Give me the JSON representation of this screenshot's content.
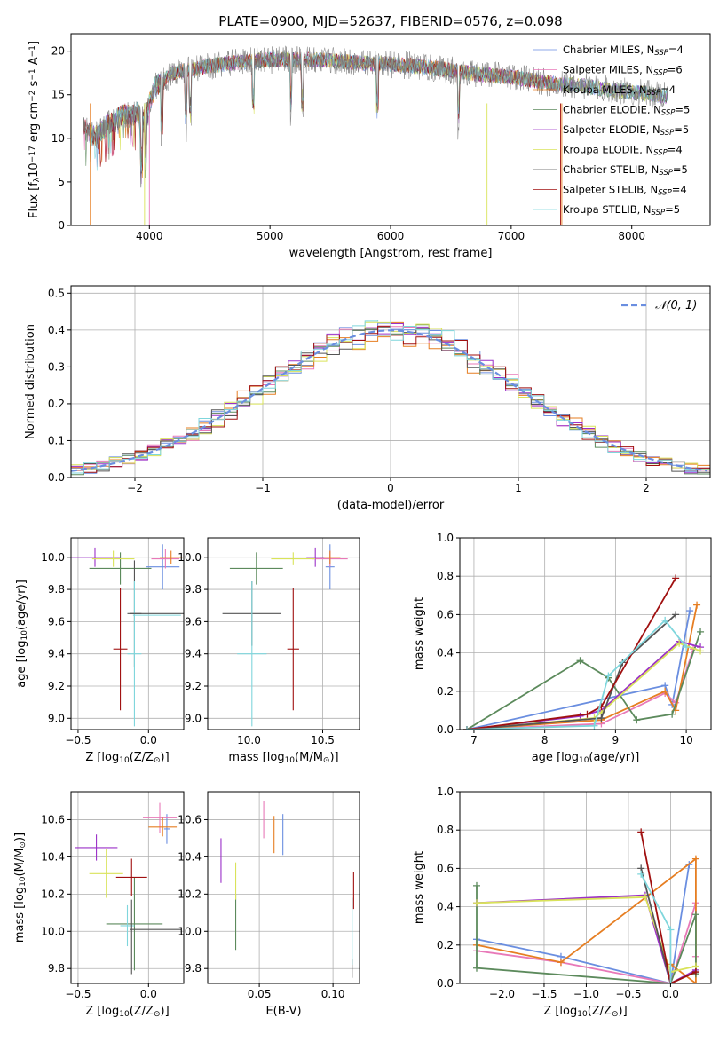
{
  "figure": {
    "title": "PLATE=0900, MJD=52637, FIBERID=0576, z=0.098"
  },
  "models": [
    {
      "name": "Chabrier MILES, N$_{SSP}$=4",
      "label_prefix": "Chabrier MILES, N",
      "label_sub": "SSP",
      "label_suffix": "=4",
      "color": "#6a8ee0"
    },
    {
      "name": "Salpeter MILES, N$_{SSP}$=6",
      "label_prefix": "Salpeter MILES, N",
      "label_sub": "SSP",
      "label_suffix": "=6",
      "color": "#e879b8"
    },
    {
      "name": "Kroupa MILES, N$_{SSP}$=4",
      "label_prefix": "Kroupa MILES, N",
      "label_sub": "SSP",
      "label_suffix": "=4",
      "color": "#e67e22"
    },
    {
      "name": "Chabrier ELODIE, N$_{SSP}$=5",
      "label_prefix": "Chabrier ELODIE, N",
      "label_sub": "SSP",
      "label_suffix": "=5",
      "color": "#5c8a5c"
    },
    {
      "name": "Salpeter ELODIE, N$_{SSP}$=5",
      "label_prefix": "Salpeter ELODIE, N",
      "label_sub": "SSP",
      "label_suffix": "=5",
      "color": "#9b30c8"
    },
    {
      "name": "Kroupa ELODIE, N$_{SSP}$=4",
      "label_prefix": "Kroupa ELODIE, N",
      "label_sub": "SSP",
      "label_suffix": "=4",
      "color": "#d9e35a"
    },
    {
      "name": "Chabrier STELIB, N$_{SSP}$=5",
      "label_prefix": "Chabrier STELIB, N",
      "label_sub": "SSP",
      "label_suffix": "=5",
      "color": "#555555"
    },
    {
      "name": "Salpeter STELIB, N$_{SSP}$=4",
      "label_prefix": "Salpeter STELIB, N",
      "label_sub": "SSP",
      "label_suffix": "=4",
      "color": "#a01010"
    },
    {
      "name": "Kroupa STELIB, N$_{SSP}$=5",
      "label_prefix": "Kroupa STELIB, N",
      "label_sub": "SSP",
      "label_suffix": "=5",
      "color": "#7fd6dc"
    }
  ],
  "chart_data": [
    {
      "id": "spectrum",
      "type": "line",
      "xlabel": "wavelength [Angstrom, rest frame]",
      "ylabel": "Flux [f$_\\lambda$10$^{-17}$ erg cm$^{-2}$ s$^{-1}$ A$^{-1}$]",
      "ylabel_parts": [
        "Flux [f",
        "λ",
        "10",
        "−17",
        " erg cm",
        "−2",
        " s",
        "−1",
        " A",
        "−1",
        "]"
      ],
      "xlim": [
        3350,
        8650
      ],
      "ylim": [
        0,
        22
      ],
      "xticks": [
        4000,
        5000,
        6000,
        7000,
        8000
      ],
      "yticks": [
        0,
        5,
        10,
        15,
        20
      ],
      "legend": "upper right",
      "spectrum_x": [
        3450,
        3500,
        3550,
        3600,
        3650,
        3700,
        3750,
        3800,
        3850,
        3900,
        3950,
        4000,
        4050,
        4100,
        4150,
        4200,
        4300,
        4400,
        4500,
        4600,
        4800,
        5000,
        5200,
        5400,
        5600,
        5800,
        6000,
        6200,
        6400,
        6600,
        6800,
        7000,
        7200,
        7400,
        7600,
        7800,
        8000,
        8200,
        8300
      ],
      "spectrum_y": [
        11.5,
        10.5,
        10.2,
        10.8,
        11.5,
        12.0,
        12.5,
        12.8,
        12.5,
        13.0,
        12.0,
        14.0,
        16.0,
        16.5,
        17.0,
        17.5,
        17.8,
        18.0,
        18.3,
        18.5,
        18.8,
        19.0,
        19.0,
        19.0,
        18.8,
        18.6,
        18.5,
        18.3,
        18.0,
        17.6,
        17.3,
        17.0,
        16.6,
        16.2,
        16.0,
        15.6,
        15.3,
        15.0,
        14.8
      ]
    },
    {
      "id": "residuals",
      "type": "bar",
      "xlabel": "(data-model)/error",
      "ylabel": "Normed distribution",
      "xlim": [
        -2.5,
        2.5
      ],
      "ylim": [
        0,
        0.52
      ],
      "xticks": [
        -2,
        -1,
        0,
        1,
        2
      ],
      "yticks": [
        0.0,
        0.1,
        0.2,
        0.3,
        0.4,
        0.5
      ],
      "legend_label": "𝒩(0, 1)",
      "legend": "upper right",
      "gaussian_mu": 0,
      "gaussian_sigma": 1
    },
    {
      "id": "z-age",
      "type": "scatter",
      "xlabel": "Z [log$_{10}$(Z/Z$_\\odot$)]",
      "ylabel": "age  [log$_{10}$(age/yr)]",
      "xlim": [
        -0.55,
        0.25
      ],
      "ylim": [
        8.93,
        10.12
      ],
      "xticks": [
        -0.5,
        0.0
      ],
      "yticks": [
        9.0,
        9.2,
        9.4,
        9.6,
        9.8,
        10.0
      ],
      "crosses": [
        {
          "m": 0,
          "x": 0.1,
          "y": 9.94,
          "dx": 0.12,
          "dy": 0.14
        },
        {
          "m": 1,
          "x": 0.12,
          "y": 9.99,
          "dx": 0.1,
          "dy": 0.06
        },
        {
          "m": 2,
          "x": 0.16,
          "y": 10.0,
          "dx": 0.08,
          "dy": 0.04
        },
        {
          "m": 3,
          "x": -0.2,
          "y": 9.93,
          "dx": 0.22,
          "dy": 0.1
        },
        {
          "m": 4,
          "x": -0.38,
          "y": 10.0,
          "dx": 0.18,
          "dy": 0.06
        },
        {
          "m": 5,
          "x": -0.25,
          "y": 9.99,
          "dx": 0.15,
          "dy": 0.05
        },
        {
          "m": 6,
          "x": -0.1,
          "y": 9.65,
          "dx": 0.05,
          "dy": 0.33
        },
        {
          "m": 7,
          "x": -0.2,
          "y": 9.43,
          "dx": 0.05,
          "dy": 0.38
        },
        {
          "m": 8,
          "x": -0.1,
          "y": 9.4,
          "dx": 0.05,
          "dy": 0.45
        },
        {
          "m": 6,
          "x": 0.06,
          "y": 9.65,
          "dx": 0.19,
          "dy": 0.0
        },
        {
          "m": 8,
          "x": 0.06,
          "y": 9.64,
          "dx": 0.17,
          "dy": 0.0
        }
      ]
    },
    {
      "id": "mass-age",
      "type": "scatter",
      "xlabel": "mass [log$_{10}$(M/M$_\\odot$)]",
      "ylabel": "",
      "xlim": [
        9.72,
        10.75
      ],
      "ylim": [
        8.93,
        10.12
      ],
      "xticks": [
        10.0,
        10.5
      ],
      "yticks": [
        9.0,
        9.2,
        9.4,
        9.6,
        9.8,
        10.0
      ],
      "crosses": [
        {
          "m": 0,
          "x": 10.55,
          "y": 9.94,
          "dx": 0.03,
          "dy": 0.14
        },
        {
          "m": 1,
          "x": 10.55,
          "y": 9.99,
          "dx": 0.12,
          "dy": 0.05
        },
        {
          "m": 2,
          "x": 10.55,
          "y": 10.0,
          "dx": 0.07,
          "dy": 0.04
        },
        {
          "m": 3,
          "x": 10.05,
          "y": 9.93,
          "dx": 0.18,
          "dy": 0.1
        },
        {
          "m": 4,
          "x": 10.45,
          "y": 10.0,
          "dx": 0.06,
          "dy": 0.06
        },
        {
          "m": 5,
          "x": 10.3,
          "y": 9.99,
          "dx": 0.15,
          "dy": 0.04
        },
        {
          "m": 6,
          "x": 10.02,
          "y": 9.65,
          "dx": 0.2,
          "dy": 0.2
        },
        {
          "m": 7,
          "x": 10.3,
          "y": 9.43,
          "dx": 0.04,
          "dy": 0.38
        },
        {
          "m": 8,
          "x": 10.02,
          "y": 9.4,
          "dx": 0.1,
          "dy": 0.45
        }
      ]
    },
    {
      "id": "age-weight",
      "type": "line",
      "xlabel": "age  [log$_{10}$(age/yr)]",
      "ylabel": "mass weight",
      "xlim": [
        6.8,
        10.35
      ],
      "ylim": [
        0,
        1.0
      ],
      "xticks": [
        7,
        8,
        9,
        10
      ],
      "yticks": [
        0.0,
        0.2,
        0.4,
        0.6,
        0.8,
        1.0
      ],
      "series": [
        {
          "m": 0,
          "x": [
            6.9,
            9.7,
            9.8,
            10.05
          ],
          "y": [
            0.0,
            0.23,
            0.13,
            0.62
          ]
        },
        {
          "m": 1,
          "x": [
            6.9,
            8.8,
            9.7,
            9.85,
            10.1
          ],
          "y": [
            0.0,
            0.03,
            0.19,
            0.14,
            0.42
          ]
        },
        {
          "m": 2,
          "x": [
            6.9,
            8.8,
            9.7,
            9.85,
            10.15
          ],
          "y": [
            0.0,
            0.05,
            0.2,
            0.1,
            0.65
          ]
        },
        {
          "m": 3,
          "x": [
            6.9,
            8.5,
            8.9,
            9.3,
            9.8,
            10.2
          ],
          "y": [
            0.0,
            0.36,
            0.27,
            0.05,
            0.08,
            0.51
          ]
        },
        {
          "m": 4,
          "x": [
            6.9,
            8.5,
            8.8,
            9.9,
            10.2
          ],
          "y": [
            0.0,
            0.07,
            0.1,
            0.46,
            0.43
          ]
        },
        {
          "m": 5,
          "x": [
            6.9,
            8.7,
            8.8,
            9.9,
            10.2
          ],
          "y": [
            0.0,
            0.06,
            0.09,
            0.45,
            0.41
          ]
        },
        {
          "m": 6,
          "x": [
            6.9,
            8.8,
            9.1,
            9.85
          ],
          "y": [
            0.0,
            0.06,
            0.35,
            0.6
          ]
        },
        {
          "m": 7,
          "x": [
            6.9,
            8.6,
            8.8,
            9.85
          ],
          "y": [
            0.0,
            0.08,
            0.12,
            0.79
          ]
        },
        {
          "m": 8,
          "x": [
            6.9,
            8.7,
            8.9,
            9.7,
            10.0
          ],
          "y": [
            0.0,
            0.02,
            0.28,
            0.57,
            0.43
          ]
        }
      ]
    },
    {
      "id": "z-mass",
      "type": "scatter",
      "xlabel": "Z [log$_{10}$(Z/Z$_\\odot$)]",
      "ylabel": "mass [log$_{10}$(M/M$_\\odot$)]",
      "xlim": [
        -0.55,
        0.25
      ],
      "ylim": [
        9.72,
        10.75
      ],
      "xticks": [
        -0.5,
        0.0
      ],
      "yticks": [
        9.8,
        10.0,
        10.2,
        10.4,
        10.6
      ],
      "crosses": [
        {
          "m": 0,
          "x": 0.13,
          "y": 10.55,
          "dx": 0.02,
          "dy": 0.08
        },
        {
          "m": 1,
          "x": 0.08,
          "y": 10.61,
          "dx": 0.12,
          "dy": 0.08
        },
        {
          "m": 2,
          "x": 0.1,
          "y": 10.56,
          "dx": 0.1,
          "dy": 0.05
        },
        {
          "m": 3,
          "x": -0.1,
          "y": 10.04,
          "dx": 0.2,
          "dy": 0.25
        },
        {
          "m": 4,
          "x": -0.37,
          "y": 10.45,
          "dx": 0.15,
          "dy": 0.07
        },
        {
          "m": 5,
          "x": -0.3,
          "y": 10.31,
          "dx": 0.12,
          "dy": 0.13
        },
        {
          "m": 6,
          "x": 0.05,
          "y": 10.01,
          "dx": 0.18,
          "dy": 0.0
        },
        {
          "m": 7,
          "x": -0.12,
          "y": 10.29,
          "dx": 0.11,
          "dy": 0.1
        },
        {
          "m": 8,
          "x": -0.15,
          "y": 10.03,
          "dx": 0.05,
          "dy": 0.11
        },
        {
          "m": 6,
          "x": -0.12,
          "y": 9.97,
          "dx": 0.0,
          "dy": 0.2
        }
      ]
    },
    {
      "id": "ebv-mass",
      "type": "scatter",
      "xlabel": "E(B-V)",
      "ylabel": "",
      "xlim": [
        0.015,
        0.118
      ],
      "ylim": [
        9.72,
        10.75
      ],
      "xticks": [
        0.05,
        0.1
      ],
      "yticks": [
        9.8,
        10.0,
        10.2,
        10.4,
        10.6
      ],
      "crosses": [
        {
          "m": 0,
          "x": 0.066,
          "y": 10.52,
          "dx": 0.0,
          "dy": 0.11
        },
        {
          "m": 1,
          "x": 0.053,
          "y": 10.6,
          "dx": 0.0,
          "dy": 0.1
        },
        {
          "m": 2,
          "x": 0.06,
          "y": 10.52,
          "dx": 0.0,
          "dy": 0.1
        },
        {
          "m": 3,
          "x": 0.034,
          "y": 10.05,
          "dx": 0.0,
          "dy": 0.15
        },
        {
          "m": 4,
          "x": 0.024,
          "y": 10.38,
          "dx": 0.0,
          "dy": 0.12
        },
        {
          "m": 5,
          "x": 0.034,
          "y": 10.27,
          "dx": 0.0,
          "dy": 0.1
        },
        {
          "m": 6,
          "x": 0.113,
          "y": 9.8,
          "dx": 0.0,
          "dy": 0.05
        },
        {
          "m": 7,
          "x": 0.114,
          "y": 10.22,
          "dx": 0.0,
          "dy": 0.1
        },
        {
          "m": 8,
          "x": 0.113,
          "y": 10.0,
          "dx": 0.0,
          "dy": 0.18
        }
      ]
    },
    {
      "id": "z-weight",
      "type": "line",
      "xlabel": "Z [log$_{10}$(Z/Z$_\\odot$)]",
      "ylabel": "mass weight",
      "xlim": [
        -2.5,
        0.48
      ],
      "ylim": [
        0,
        1.0
      ],
      "xticks": [
        -2.0,
        -1.5,
        -1.0,
        -0.5,
        0.0
      ],
      "yticks": [
        0.0,
        0.2,
        0.4,
        0.6,
        0.8,
        1.0
      ],
      "series": [
        {
          "m": 0,
          "x": [
            -2.3,
            -1.3,
            0.0,
            0.22
          ],
          "y": [
            0.23,
            0.14,
            0.0,
            0.62
          ]
        },
        {
          "m": 1,
          "x": [
            -2.3,
            -1.3,
            0.0,
            0.3,
            0.3
          ],
          "y": [
            0.17,
            0.11,
            0.0,
            0.42,
            0.14
          ]
        },
        {
          "m": 2,
          "x": [
            -2.3,
            -1.3,
            0.3,
            0.3,
            0.0
          ],
          "y": [
            0.2,
            0.11,
            0.65,
            0.0,
            0.1
          ]
        },
        {
          "m": 3,
          "x": [
            -2.3,
            -2.3,
            0.0,
            0.3,
            0.3
          ],
          "y": [
            0.51,
            0.08,
            0.0,
            0.36,
            0.05
          ]
        },
        {
          "m": 4,
          "x": [
            -2.3,
            -0.3,
            0.0,
            0.3
          ],
          "y": [
            0.42,
            0.46,
            0.0,
            0.07
          ]
        },
        {
          "m": 5,
          "x": [
            -2.3,
            -0.3,
            0.0,
            0.3
          ],
          "y": [
            0.42,
            0.45,
            0.06,
            0.09
          ]
        },
        {
          "m": 6,
          "x": [
            -0.35,
            0.0,
            0.3
          ],
          "y": [
            0.6,
            0.0,
            0.06
          ]
        },
        {
          "m": 7,
          "x": [
            -0.35,
            0.0,
            0.3
          ],
          "y": [
            0.79,
            0.0,
            0.06
          ]
        },
        {
          "m": 8,
          "x": [
            -0.35,
            0.0,
            0.0
          ],
          "y": [
            0.57,
            0.28,
            0.0
          ]
        }
      ]
    }
  ]
}
